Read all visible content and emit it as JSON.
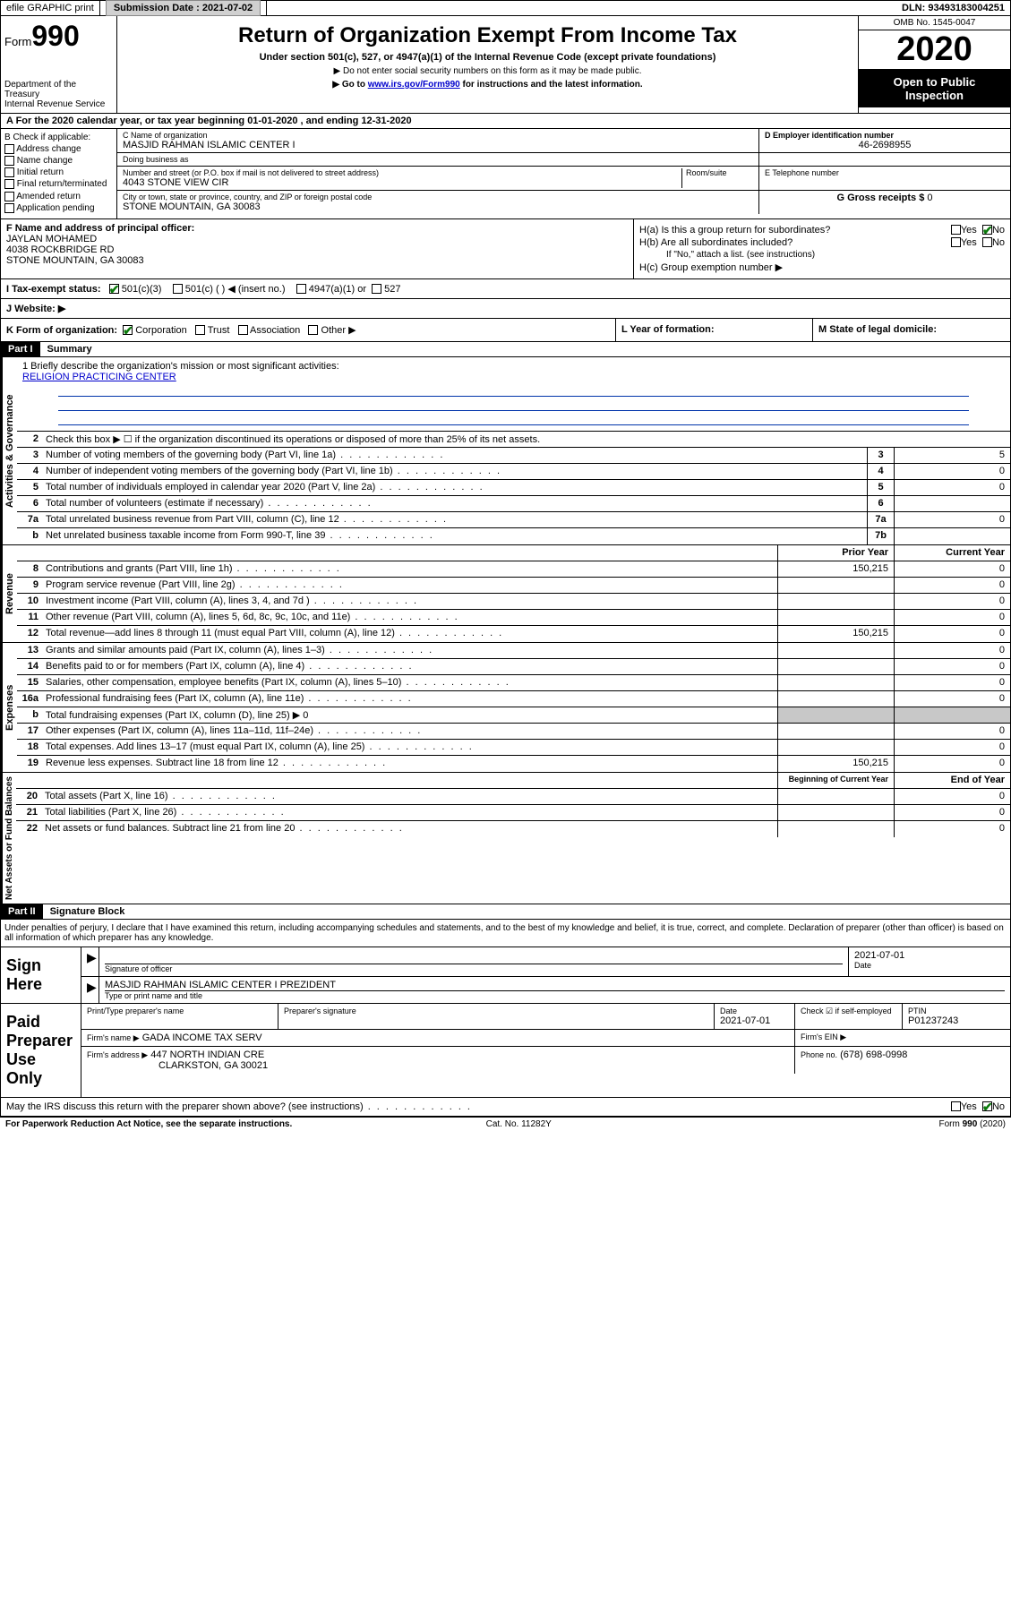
{
  "topbar": {
    "efile": "efile GRAPHIC print",
    "submission_label": "Submission Date :",
    "submission_date": "2021-07-02",
    "dln_label": "DLN:",
    "dln": "93493183004251"
  },
  "header": {
    "form_word": "Form",
    "form_num": "990",
    "dept": "Department of the Treasury\nInternal Revenue Service",
    "title": "Return of Organization Exempt From Income Tax",
    "subtitle": "Under section 501(c), 527, or 4947(a)(1) of the Internal Revenue Code (except private foundations)",
    "note1": "▶ Do not enter social security numbers on this form as it may be made public.",
    "note2_pre": "▶ Go to ",
    "note2_link": "www.irs.gov/Form990",
    "note2_post": " for instructions and the latest information.",
    "omb": "OMB No. 1545-0047",
    "year": "2020",
    "inspect": "Open to Public Inspection"
  },
  "row_a": "A   For the 2020 calendar year, or tax year beginning 01-01-2020    , and ending 12-31-2020",
  "section_b": {
    "label": "B Check if applicable:",
    "items": [
      "Address change",
      "Name change",
      "Initial return",
      "Final return/terminated",
      "Amended return",
      "Application pending"
    ]
  },
  "section_c": {
    "name_label": "C Name of organization",
    "name": "MASJID RAHMAN ISLAMIC CENTER I",
    "dba_label": "Doing business as",
    "dba": "",
    "addr_label": "Number and street (or P.O. box if mail is not delivered to street address)",
    "room_label": "Room/suite",
    "addr": "4043 STONE VIEW CIR",
    "city_label": "City or town, state or province, country, and ZIP or foreign postal code",
    "city": "STONE MOUNTAIN, GA  30083"
  },
  "section_d": {
    "label": "D Employer identification number",
    "value": "46-2698955"
  },
  "section_e": {
    "label": "E Telephone number",
    "value": ""
  },
  "section_g": {
    "label": "G Gross receipts $",
    "value": "0"
  },
  "section_f": {
    "label": "F  Name and address of principal officer:",
    "name": "JAYLAN MOHAMED",
    "addr1": "4038 ROCKBRIDGE RD",
    "addr2": "STONE MOUNTAIN, GA  30083"
  },
  "section_h": {
    "a": "H(a)  Is this a group return for subordinates?",
    "b": "H(b)  Are all subordinates included?",
    "b_note": "If \"No,\" attach a list. (see instructions)",
    "c": "H(c)  Group exemption number ▶",
    "yes": "Yes",
    "no": "No"
  },
  "tax_status": {
    "label": "I   Tax-exempt status:",
    "c3": "501(c)(3)",
    "c": "501(c) (  ) ◀ (insert no.)",
    "a1": "4947(a)(1) or",
    "s527": "527"
  },
  "website": {
    "label": "J   Website: ▶",
    "value": ""
  },
  "row_k": "K Form of organization:",
  "row_k_opts": [
    "Corporation",
    "Trust",
    "Association",
    "Other ▶"
  ],
  "row_l": "L Year of formation:",
  "row_m": "M State of legal domicile:",
  "part1": {
    "hdr": "Part I",
    "title": "Summary",
    "vlabel_gov": "Activities & Governance",
    "vlabel_rev": "Revenue",
    "vlabel_exp": "Expenses",
    "vlabel_net": "Net Assets or Fund Balances",
    "l1_label": "1  Briefly describe the organization's mission or most significant activities:",
    "l1_value": "RELIGION PRACTICING CENTER",
    "l2": "Check this box ▶ ☐  if the organization discontinued its operations or disposed of more than 25% of its net assets.",
    "lines_gov": [
      {
        "n": "3",
        "t": "Number of voting members of the governing body (Part VI, line 1a)",
        "box": "3",
        "v": "5"
      },
      {
        "n": "4",
        "t": "Number of independent voting members of the governing body (Part VI, line 1b)",
        "box": "4",
        "v": "0"
      },
      {
        "n": "5",
        "t": "Total number of individuals employed in calendar year 2020 (Part V, line 2a)",
        "box": "5",
        "v": "0"
      },
      {
        "n": "6",
        "t": "Total number of volunteers (estimate if necessary)",
        "box": "6",
        "v": ""
      },
      {
        "n": "7a",
        "t": "Total unrelated business revenue from Part VIII, column (C), line 12",
        "box": "7a",
        "v": "0"
      },
      {
        "n": "b",
        "t": "Net unrelated business taxable income from Form 990-T, line 39",
        "box": "7b",
        "v": ""
      }
    ],
    "col_prior": "Prior Year",
    "col_current": "Current Year",
    "lines_rev": [
      {
        "n": "8",
        "t": "Contributions and grants (Part VIII, line 1h)",
        "p": "150,215",
        "c": "0"
      },
      {
        "n": "9",
        "t": "Program service revenue (Part VIII, line 2g)",
        "p": "",
        "c": "0"
      },
      {
        "n": "10",
        "t": "Investment income (Part VIII, column (A), lines 3, 4, and 7d )",
        "p": "",
        "c": "0"
      },
      {
        "n": "11",
        "t": "Other revenue (Part VIII, column (A), lines 5, 6d, 8c, 9c, 10c, and 11e)",
        "p": "",
        "c": "0"
      },
      {
        "n": "12",
        "t": "Total revenue—add lines 8 through 11 (must equal Part VIII, column (A), line 12)",
        "p": "150,215",
        "c": "0"
      }
    ],
    "lines_exp": [
      {
        "n": "13",
        "t": "Grants and similar amounts paid (Part IX, column (A), lines 1–3)",
        "p": "",
        "c": "0"
      },
      {
        "n": "14",
        "t": "Benefits paid to or for members (Part IX, column (A), line 4)",
        "p": "",
        "c": "0"
      },
      {
        "n": "15",
        "t": "Salaries, other compensation, employee benefits (Part IX, column (A), lines 5–10)",
        "p": "",
        "c": "0"
      },
      {
        "n": "16a",
        "t": "Professional fundraising fees (Part IX, column (A), line 11e)",
        "p": "",
        "c": "0"
      },
      {
        "n": "b",
        "t": "Total fundraising expenses (Part IX, column (D), line 25) ▶ 0",
        "shade": true
      },
      {
        "n": "17",
        "t": "Other expenses (Part IX, column (A), lines 11a–11d, 11f–24e)",
        "p": "",
        "c": "0"
      },
      {
        "n": "18",
        "t": "Total expenses. Add lines 13–17 (must equal Part IX, column (A), line 25)",
        "p": "",
        "c": "0"
      },
      {
        "n": "19",
        "t": "Revenue less expenses. Subtract line 18 from line 12",
        "p": "150,215",
        "c": "0"
      }
    ],
    "col_begin": "Beginning of Current Year",
    "col_end": "End of Year",
    "lines_net": [
      {
        "n": "20",
        "t": "Total assets (Part X, line 16)",
        "p": "",
        "c": "0"
      },
      {
        "n": "21",
        "t": "Total liabilities (Part X, line 26)",
        "p": "",
        "c": "0"
      },
      {
        "n": "22",
        "t": "Net assets or fund balances. Subtract line 21 from line 20",
        "p": "",
        "c": "0"
      }
    ]
  },
  "part2": {
    "hdr": "Part II",
    "title": "Signature Block",
    "decl": "Under penalties of perjury, I declare that I have examined this return, including accompanying schedules and statements, and to the best of my knowledge and belief, it is true, correct, and complete. Declaration of preparer (other than officer) is based on all information of which preparer has any knowledge.",
    "sign_here": "Sign Here",
    "sig_officer": "Signature of officer",
    "sig_date_label": "Date",
    "sig_date": "2021-07-01",
    "sig_name": "MASJID RAHMAN ISLAMIC CENTER I  PREZIDENT",
    "sig_type_label": "Type or print name and title",
    "paid_label": "Paid Preparer Use Only",
    "prep_name_label": "Print/Type preparer's name",
    "prep_sig_label": "Preparer's signature",
    "prep_date_label": "Date",
    "prep_date": "2021-07-01",
    "prep_check_label": "Check ☑ if self-employed",
    "ptin_label": "PTIN",
    "ptin": "P01237243",
    "firm_name_label": "Firm's name    ▶",
    "firm_name": "GADA INCOME TAX SERV",
    "firm_ein_label": "Firm's EIN ▶",
    "firm_addr_label": "Firm's address ▶",
    "firm_addr1": "447 NORTH INDIAN CRE",
    "firm_addr2": "CLARKSTON, GA  30021",
    "phone_label": "Phone no.",
    "phone": "(678) 698-0998",
    "discuss": "May the IRS discuss this return with the preparer shown above? (see instructions)"
  },
  "footer": {
    "left": "For Paperwork Reduction Act Notice, see the separate instructions.",
    "mid": "Cat. No. 11282Y",
    "right": "Form 990 (2020)"
  }
}
